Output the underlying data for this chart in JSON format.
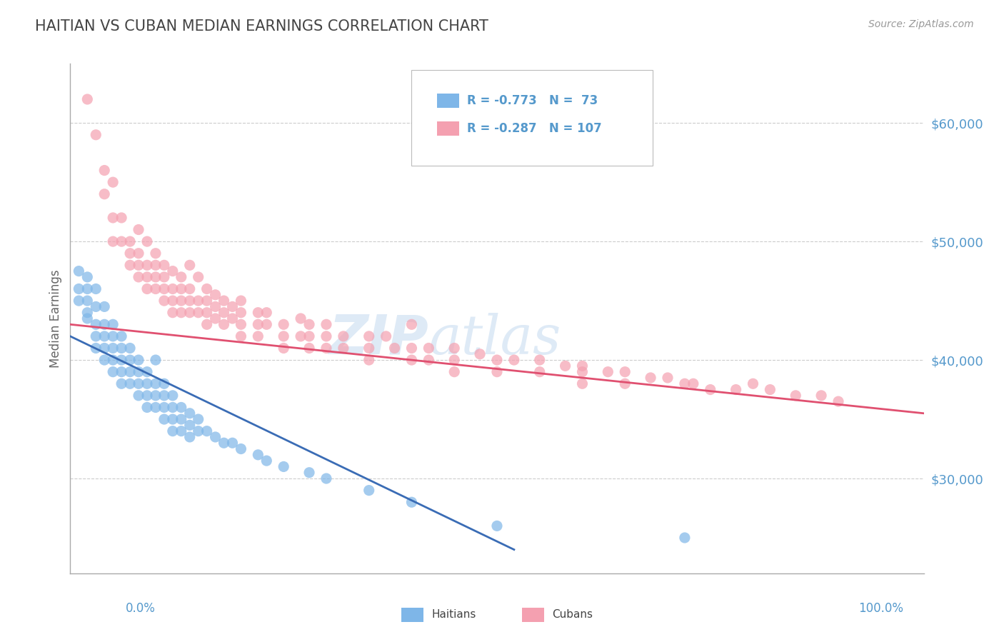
{
  "title": "HAITIAN VS CUBAN MEDIAN EARNINGS CORRELATION CHART",
  "source": "Source: ZipAtlas.com",
  "ylabel": "Median Earnings",
  "xmin": 0.0,
  "xmax": 1.0,
  "ymin": 22000,
  "ymax": 65000,
  "yticks": [
    30000,
    40000,
    50000,
    60000
  ],
  "ytick_labels": [
    "$30,000",
    "$40,000",
    "$50,000",
    "$60,000"
  ],
  "haitian_color": "#7EB6E8",
  "cuban_color": "#F4A0B0",
  "haitian_line_color": "#3A6CB5",
  "cuban_line_color": "#E05070",
  "title_color": "#555555",
  "axis_label_color": "#5599CC",
  "watermark_color": "#C8DCF0",
  "background_color": "#FFFFFF",
  "grid_color": "#CCCCCC",
  "haitian_scatter": [
    [
      0.01,
      47500
    ],
    [
      0.01,
      46000
    ],
    [
      0.01,
      45000
    ],
    [
      0.02,
      47000
    ],
    [
      0.02,
      46000
    ],
    [
      0.02,
      45000
    ],
    [
      0.02,
      44000
    ],
    [
      0.02,
      43500
    ],
    [
      0.03,
      46000
    ],
    [
      0.03,
      44500
    ],
    [
      0.03,
      43000
    ],
    [
      0.03,
      42000
    ],
    [
      0.03,
      41000
    ],
    [
      0.04,
      44500
    ],
    [
      0.04,
      43000
    ],
    [
      0.04,
      42000
    ],
    [
      0.04,
      41000
    ],
    [
      0.04,
      40000
    ],
    [
      0.05,
      43000
    ],
    [
      0.05,
      42000
    ],
    [
      0.05,
      41000
    ],
    [
      0.05,
      40000
    ],
    [
      0.05,
      39000
    ],
    [
      0.06,
      42000
    ],
    [
      0.06,
      41000
    ],
    [
      0.06,
      40000
    ],
    [
      0.06,
      39000
    ],
    [
      0.06,
      38000
    ],
    [
      0.07,
      41000
    ],
    [
      0.07,
      40000
    ],
    [
      0.07,
      39000
    ],
    [
      0.07,
      38000
    ],
    [
      0.08,
      40000
    ],
    [
      0.08,
      39000
    ],
    [
      0.08,
      38000
    ],
    [
      0.08,
      37000
    ],
    [
      0.09,
      39000
    ],
    [
      0.09,
      38000
    ],
    [
      0.09,
      37000
    ],
    [
      0.09,
      36000
    ],
    [
      0.1,
      40000
    ],
    [
      0.1,
      38000
    ],
    [
      0.1,
      37000
    ],
    [
      0.1,
      36000
    ],
    [
      0.11,
      38000
    ],
    [
      0.11,
      37000
    ],
    [
      0.11,
      36000
    ],
    [
      0.11,
      35000
    ],
    [
      0.12,
      37000
    ],
    [
      0.12,
      36000
    ],
    [
      0.12,
      35000
    ],
    [
      0.12,
      34000
    ],
    [
      0.13,
      36000
    ],
    [
      0.13,
      35000
    ],
    [
      0.13,
      34000
    ],
    [
      0.14,
      35500
    ],
    [
      0.14,
      34500
    ],
    [
      0.14,
      33500
    ],
    [
      0.15,
      35000
    ],
    [
      0.15,
      34000
    ],
    [
      0.16,
      34000
    ],
    [
      0.17,
      33500
    ],
    [
      0.18,
      33000
    ],
    [
      0.19,
      33000
    ],
    [
      0.2,
      32500
    ],
    [
      0.22,
      32000
    ],
    [
      0.23,
      31500
    ],
    [
      0.25,
      31000
    ],
    [
      0.28,
      30500
    ],
    [
      0.3,
      30000
    ],
    [
      0.35,
      29000
    ],
    [
      0.4,
      28000
    ],
    [
      0.5,
      26000
    ],
    [
      0.72,
      25000
    ]
  ],
  "cuban_scatter": [
    [
      0.02,
      62000
    ],
    [
      0.03,
      59000
    ],
    [
      0.04,
      56000
    ],
    [
      0.04,
      54000
    ],
    [
      0.05,
      55000
    ],
    [
      0.05,
      52000
    ],
    [
      0.05,
      50000
    ],
    [
      0.06,
      52000
    ],
    [
      0.06,
      50000
    ],
    [
      0.07,
      50000
    ],
    [
      0.07,
      49000
    ],
    [
      0.07,
      48000
    ],
    [
      0.08,
      51000
    ],
    [
      0.08,
      49000
    ],
    [
      0.08,
      48000
    ],
    [
      0.08,
      47000
    ],
    [
      0.09,
      50000
    ],
    [
      0.09,
      48000
    ],
    [
      0.09,
      47000
    ],
    [
      0.09,
      46000
    ],
    [
      0.1,
      49000
    ],
    [
      0.1,
      48000
    ],
    [
      0.1,
      47000
    ],
    [
      0.1,
      46000
    ],
    [
      0.11,
      48000
    ],
    [
      0.11,
      47000
    ],
    [
      0.11,
      46000
    ],
    [
      0.11,
      45000
    ],
    [
      0.12,
      47500
    ],
    [
      0.12,
      46000
    ],
    [
      0.12,
      45000
    ],
    [
      0.12,
      44000
    ],
    [
      0.13,
      47000
    ],
    [
      0.13,
      46000
    ],
    [
      0.13,
      45000
    ],
    [
      0.13,
      44000
    ],
    [
      0.14,
      48000
    ],
    [
      0.14,
      46000
    ],
    [
      0.14,
      45000
    ],
    [
      0.14,
      44000
    ],
    [
      0.15,
      47000
    ],
    [
      0.15,
      45000
    ],
    [
      0.15,
      44000
    ],
    [
      0.16,
      46000
    ],
    [
      0.16,
      45000
    ],
    [
      0.16,
      44000
    ],
    [
      0.16,
      43000
    ],
    [
      0.17,
      45500
    ],
    [
      0.17,
      44500
    ],
    [
      0.17,
      43500
    ],
    [
      0.18,
      45000
    ],
    [
      0.18,
      44000
    ],
    [
      0.18,
      43000
    ],
    [
      0.19,
      44500
    ],
    [
      0.19,
      43500
    ],
    [
      0.2,
      45000
    ],
    [
      0.2,
      44000
    ],
    [
      0.2,
      43000
    ],
    [
      0.2,
      42000
    ],
    [
      0.22,
      44000
    ],
    [
      0.22,
      43000
    ],
    [
      0.22,
      42000
    ],
    [
      0.23,
      44000
    ],
    [
      0.23,
      43000
    ],
    [
      0.25,
      43000
    ],
    [
      0.25,
      42000
    ],
    [
      0.25,
      41000
    ],
    [
      0.27,
      43500
    ],
    [
      0.27,
      42000
    ],
    [
      0.28,
      43000
    ],
    [
      0.28,
      42000
    ],
    [
      0.28,
      41000
    ],
    [
      0.3,
      43000
    ],
    [
      0.3,
      42000
    ],
    [
      0.3,
      41000
    ],
    [
      0.32,
      42000
    ],
    [
      0.32,
      41000
    ],
    [
      0.35,
      42000
    ],
    [
      0.35,
      41000
    ],
    [
      0.35,
      40000
    ],
    [
      0.37,
      42000
    ],
    [
      0.38,
      41000
    ],
    [
      0.4,
      43000
    ],
    [
      0.4,
      41000
    ],
    [
      0.4,
      40000
    ],
    [
      0.42,
      41000
    ],
    [
      0.42,
      40000
    ],
    [
      0.45,
      41000
    ],
    [
      0.45,
      40000
    ],
    [
      0.45,
      39000
    ],
    [
      0.48,
      40500
    ],
    [
      0.5,
      40000
    ],
    [
      0.5,
      39000
    ],
    [
      0.52,
      40000
    ],
    [
      0.55,
      40000
    ],
    [
      0.55,
      39000
    ],
    [
      0.58,
      39500
    ],
    [
      0.6,
      39500
    ],
    [
      0.6,
      39000
    ],
    [
      0.6,
      38000
    ],
    [
      0.63,
      39000
    ],
    [
      0.65,
      39000
    ],
    [
      0.65,
      38000
    ],
    [
      0.68,
      38500
    ],
    [
      0.7,
      38500
    ],
    [
      0.72,
      38000
    ],
    [
      0.73,
      38000
    ],
    [
      0.75,
      37500
    ],
    [
      0.78,
      37500
    ],
    [
      0.8,
      38000
    ],
    [
      0.82,
      37500
    ],
    [
      0.85,
      37000
    ],
    [
      0.88,
      37000
    ],
    [
      0.9,
      36500
    ]
  ]
}
